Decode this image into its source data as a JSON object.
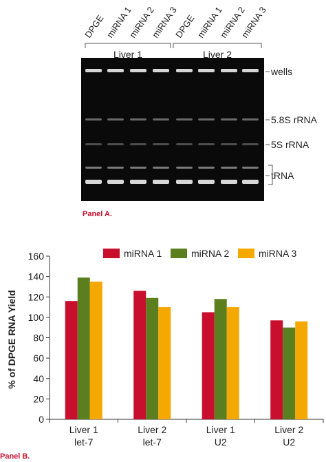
{
  "panel_a": {
    "label": "Panel A.",
    "lane_labels": [
      "DPGE",
      "miRNA 1",
      "miRNA 2",
      "miRNA 3",
      "DPGE",
      "miRNA 1",
      "miRNA 2",
      "miRNA 3"
    ],
    "group_labels": [
      "Liver 1",
      "Liver 2"
    ],
    "band_labels": [
      "wells",
      "5.8S rRNA",
      "5S rRNA",
      "tRNA"
    ]
  },
  "panel_b": {
    "label": "Panel B."
  },
  "colors": {
    "miRNA 1": "#c8102e",
    "miRNA 2": "#5b7f1e",
    "miRNA 3": "#f5a800",
    "panel_label": "#c8102e"
  },
  "chart_data": {
    "type": "bar",
    "categories": [
      [
        "Liver 1",
        "let-7"
      ],
      [
        "Liver 2",
        "let-7"
      ],
      [
        "Liver 1",
        "U2"
      ],
      [
        "Liver 2",
        "U2"
      ]
    ],
    "series": [
      {
        "name": "miRNA 1",
        "values": [
          116,
          126,
          105,
          97
        ]
      },
      {
        "name": "miRNA 2",
        "values": [
          139,
          119,
          118,
          90
        ]
      },
      {
        "name": "miRNA 3",
        "values": [
          135,
          110,
          110,
          96
        ]
      }
    ],
    "ylabel": "% of DPGE RNA Yield",
    "xlabel": "",
    "ylim": [
      0,
      160
    ],
    "yticks": [
      0,
      20,
      40,
      60,
      80,
      100,
      120,
      140,
      160
    ],
    "legend": "top",
    "grid": false
  }
}
